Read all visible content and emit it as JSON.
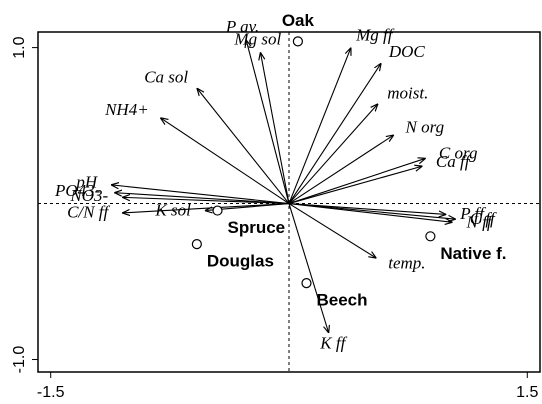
{
  "chart_data": {
    "type": "biplot",
    "xlim": [
      -1.58,
      1.58
    ],
    "ylim": [
      -1.08,
      1.1
    ],
    "xticks": [
      -1.5,
      1.5
    ],
    "yticks": [
      {
        "value": -1,
        "label": "-1.0"
      },
      {
        "value": 1,
        "label": "1.0"
      }
    ],
    "arrows": [
      {
        "name": "P av.",
        "x": -0.27,
        "y": 1.05
      },
      {
        "name": "Mg sol",
        "x": -0.18,
        "y": 0.97
      },
      {
        "name": "Mg ff",
        "x": 0.39,
        "y": 1.0
      },
      {
        "name": "DOC",
        "x": 0.58,
        "y": 0.9
      },
      {
        "name": "Ca sol",
        "x": -0.58,
        "y": 0.74
      },
      {
        "name": "NH4+",
        "x": -0.81,
        "y": 0.55
      },
      {
        "name": "moist.",
        "x": 0.56,
        "y": 0.64
      },
      {
        "name": "N org",
        "x": 0.66,
        "y": 0.44
      },
      {
        "name": "C org",
        "x": 0.86,
        "y": 0.29
      },
      {
        "name": "Ca ff",
        "x": 0.84,
        "y": 0.24
      },
      {
        "name": "P ff",
        "x": 0.99,
        "y": -0.07
      },
      {
        "name": "C ff",
        "x": 1.05,
        "y": -0.1
      },
      {
        "name": "N ff",
        "x": 1.03,
        "y": -0.12
      },
      {
        "name": "temp.",
        "x": 0.55,
        "y": -0.35
      },
      {
        "name": "K ff",
        "x": 0.25,
        "y": -0.83
      },
      {
        "name": "pH",
        "x": -1.12,
        "y": 0.12
      },
      {
        "name": "PO43-",
        "x": -1.1,
        "y": 0.07
      },
      {
        "name": "NO3-",
        "x": -1.05,
        "y": 0.04
      },
      {
        "name": "C/N ff",
        "x": -1.05,
        "y": -0.06
      },
      {
        "name": "K sol",
        "x": -0.53,
        "y": -0.045
      }
    ],
    "sites": [
      {
        "name": "Oak",
        "x": 0.056,
        "y": 1.04
      },
      {
        "name": "Spruce",
        "x": -0.45,
        "y": -0.045
      },
      {
        "name": "Douglas",
        "x": -0.58,
        "y": -0.26
      },
      {
        "name": "Beech",
        "x": 0.11,
        "y": -0.51
      },
      {
        "name": "Native f.",
        "x": 0.89,
        "y": -0.21
      }
    ]
  }
}
